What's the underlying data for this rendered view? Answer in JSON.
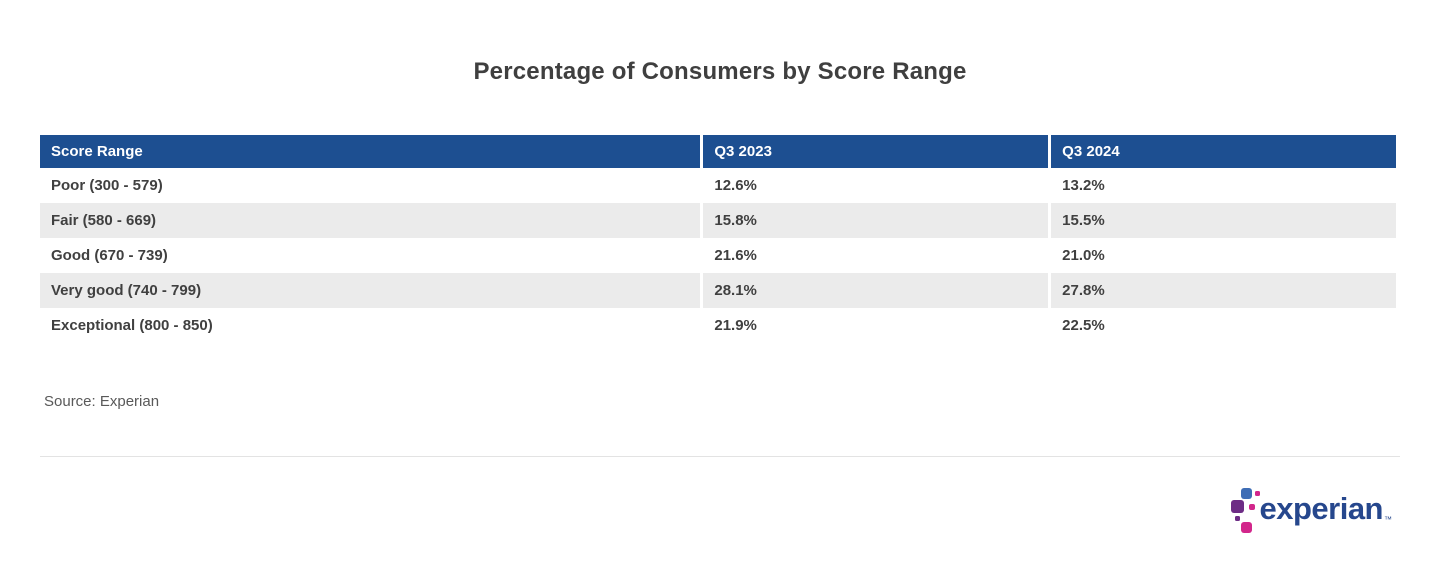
{
  "title": "Percentage of Consumers by Score Range",
  "table": {
    "columns": [
      "Score Range",
      "Q3 2023",
      "Q3 2024"
    ],
    "rows": [
      {
        "cells": [
          "Poor (300 - 579)",
          "12.6%",
          "13.2%"
        ]
      },
      {
        "cells": [
          "Fair (580 - 669)",
          "15.8%",
          "15.5%"
        ]
      },
      {
        "cells": [
          "Good (670 - 739)",
          "21.6%",
          "21.0%"
        ]
      },
      {
        "cells": [
          "Very good (740 - 799)",
          "28.1%",
          "27.8%"
        ]
      },
      {
        "cells": [
          "Exceptional (800 - 850)",
          "21.9%",
          "22.5%"
        ]
      }
    ]
  },
  "source": "Source: Experian",
  "footer": {
    "logo_text": "experian",
    "trademark": "™"
  },
  "colors": {
    "header_bg": "#1d4f91",
    "stripe": "#ebebeb",
    "logo_blue": "#26478d",
    "logo_sapphire": "#3e6db5",
    "logo_purple": "#6d2c85",
    "logo_magenta": "#d2268b"
  },
  "chart_data": {
    "type": "table",
    "title": "Percentage of Consumers by Score Range",
    "columns": [
      "Score Range",
      "Q3 2023",
      "Q3 2024"
    ],
    "rows": [
      [
        "Poor (300 - 579)",
        "12.6%",
        "13.2%"
      ],
      [
        "Fair (580 - 669)",
        "15.8%",
        "15.5%"
      ],
      [
        "Good (670 - 739)",
        "21.6%",
        "21.0%"
      ],
      [
        "Very good (740 - 799)",
        "28.1%",
        "27.8%"
      ],
      [
        "Exceptional (800 - 850)",
        "21.9%",
        "22.5%"
      ]
    ],
    "series": [
      {
        "name": "Q3 2023",
        "values": [
          12.6,
          15.8,
          21.6,
          28.1,
          21.9
        ]
      },
      {
        "name": "Q3 2024",
        "values": [
          13.2,
          15.5,
          21.0,
          27.8,
          22.5
        ]
      }
    ],
    "categories": [
      "Poor (300 - 579)",
      "Fair (580 - 669)",
      "Good (670 - 739)",
      "Very good (740 - 799)",
      "Exceptional (800 - 850)"
    ],
    "source": "Source: Experian"
  }
}
